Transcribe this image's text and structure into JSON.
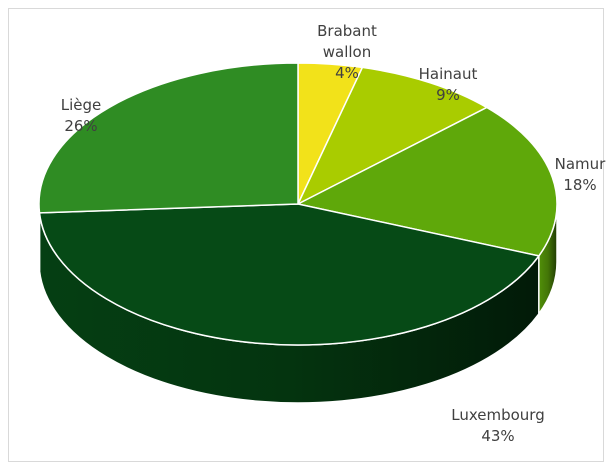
{
  "chart_data": {
    "type": "pie",
    "style": "3d",
    "title": "",
    "slices": [
      {
        "name": "Brabant wallon",
        "value": 4,
        "label_lines": [
          "Brabant",
          "wallon",
          "4%"
        ],
        "color": "#f2e21a"
      },
      {
        "name": "Hainaut",
        "value": 9,
        "label_lines": [
          "Hainaut",
          "9%"
        ],
        "color": "#a9cc00"
      },
      {
        "name": "Namur",
        "value": 18,
        "label_lines": [
          "Namur",
          "18%"
        ],
        "color": "#5fa80a"
      },
      {
        "name": "Luxembourg",
        "value": 43,
        "label_lines": [
          "Luxembourg",
          "43%"
        ],
        "color": "#064a16"
      },
      {
        "name": "Liège",
        "value": 26,
        "label_lines": [
          "Liège",
          "26%"
        ],
        "color": "#2f8c23"
      }
    ],
    "legend": "none"
  }
}
